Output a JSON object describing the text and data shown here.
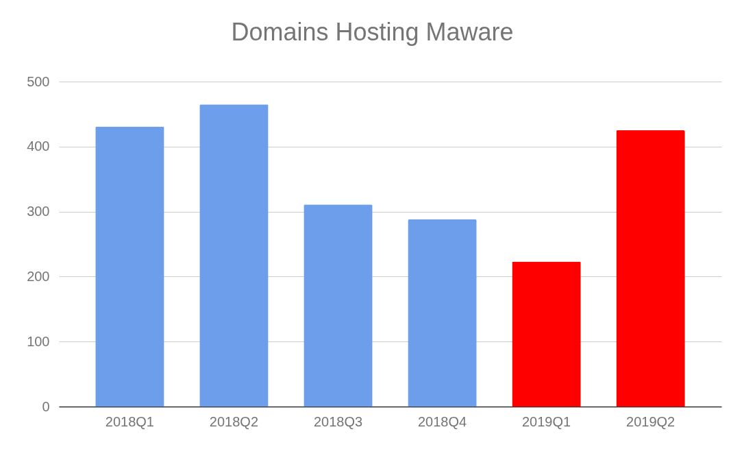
{
  "chart_data": {
    "type": "bar",
    "title": "Domains Hosting Maware",
    "categories": [
      "2018Q1",
      "2018Q2",
      "2018Q3",
      "2018Q4",
      "2019Q1",
      "2019Q2"
    ],
    "values": [
      431,
      465,
      311,
      288,
      223,
      425
    ],
    "colors": [
      "#6d9eeb",
      "#6d9eeb",
      "#6d9eeb",
      "#6d9eeb",
      "#ff0000",
      "#ff0000"
    ],
    "ylim": [
      0,
      500
    ],
    "yticks": [
      0,
      100,
      200,
      300,
      400,
      500
    ],
    "grid": "y"
  }
}
